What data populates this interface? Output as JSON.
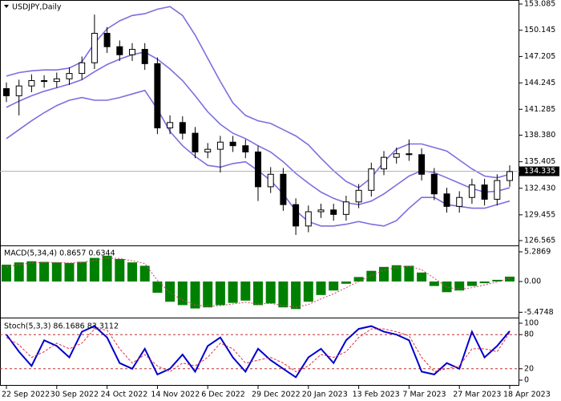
{
  "chart_data": [
    {
      "type": "candlestick",
      "title": "USDJPY,Daily",
      "open": [
        143.6,
        142.8,
        143.9,
        144.5,
        144.4,
        144.7,
        145.3,
        146.5,
        149.8,
        148.3,
        147.4,
        148.0,
        146.4,
        139.2,
        139.8,
        138.6,
        136.5,
        136.8,
        137.6,
        137.2,
        136.5,
        132.6,
        134.0,
        130.6,
        128.2,
        129.8,
        130.0,
        129.5,
        130.9,
        132.2,
        134.6,
        135.9,
        136.3,
        136.2,
        134.0,
        131.8,
        130.4,
        131.4,
        132.8,
        131.2,
        133.3
      ],
      "high": [
        144.3,
        144.6,
        145.2,
        145.1,
        145.4,
        146.0,
        147.2,
        151.9,
        150.5,
        149.0,
        148.7,
        148.7,
        147.1,
        140.6,
        140.5,
        139.3,
        137.5,
        138.3,
        138.3,
        137.9,
        137.2,
        134.8,
        134.7,
        131.3,
        130.5,
        130.7,
        130.7,
        131.6,
        132.9,
        135.3,
        136.6,
        137.0,
        137.9,
        136.9,
        134.7,
        132.5,
        132.1,
        133.5,
        133.5,
        134.0,
        135.0
      ],
      "low": [
        142.1,
        140.6,
        143.2,
        143.7,
        143.7,
        144.0,
        144.6,
        145.8,
        147.6,
        146.7,
        146.7,
        145.7,
        138.5,
        138.5,
        137.9,
        135.8,
        135.8,
        134.2,
        136.5,
        135.8,
        131.0,
        131.9,
        129.9,
        127.2,
        127.5,
        129.1,
        128.8,
        128.8,
        130.2,
        131.5,
        133.9,
        135.2,
        135.5,
        133.3,
        131.1,
        129.7,
        129.7,
        130.7,
        130.5,
        130.5,
        132.6
      ],
      "close": [
        142.8,
        143.9,
        144.5,
        144.4,
        144.7,
        145.3,
        146.5,
        149.8,
        148.3,
        147.4,
        148.0,
        146.4,
        139.2,
        139.8,
        138.6,
        136.5,
        136.8,
        137.6,
        137.2,
        136.5,
        132.6,
        134.0,
        130.6,
        128.2,
        129.8,
        130.0,
        129.5,
        130.9,
        132.2,
        134.6,
        135.9,
        136.3,
        136.2,
        134.0,
        131.8,
        130.4,
        131.4,
        132.8,
        131.2,
        133.3,
        134.3
      ],
      "series": [
        {
          "color": "#7b6fe0",
          "values": [
            145.0,
            145.4,
            145.6,
            145.7,
            145.7,
            145.9,
            146.6,
            148.7,
            150.3,
            151.2,
            151.8,
            152.0,
            152.5,
            152.8,
            151.8,
            149.6,
            147.0,
            144.4,
            142.0,
            140.6,
            140.0,
            139.7,
            139.0,
            138.3,
            137.3,
            135.8,
            134.4,
            133.2,
            132.5,
            133.6,
            135.4,
            136.8,
            137.4,
            137.4,
            137.0,
            136.6,
            135.6,
            134.6,
            133.8,
            133.6,
            134.0
          ]
        },
        {
          "color": "#7b6fe0",
          "values": [
            141.5,
            142.2,
            142.8,
            143.3,
            143.7,
            144.1,
            144.6,
            145.5,
            146.3,
            146.9,
            147.4,
            147.7,
            146.9,
            145.8,
            144.5,
            142.8,
            141.0,
            139.6,
            138.6,
            138.0,
            137.2,
            136.5,
            135.4,
            134.1,
            133.0,
            132.0,
            131.3,
            130.8,
            130.6,
            131.0,
            131.8,
            132.8,
            133.8,
            134.4,
            134.2,
            133.6,
            133.0,
            132.4,
            132.0,
            132.1,
            132.5
          ]
        },
        {
          "color": "#7b6fe0",
          "values": [
            138.0,
            139.0,
            140.0,
            140.9,
            141.7,
            142.3,
            142.6,
            142.3,
            142.3,
            142.6,
            143.0,
            143.4,
            141.3,
            138.8,
            137.2,
            136.0,
            135.0,
            134.8,
            135.2,
            135.4,
            134.4,
            133.3,
            131.8,
            129.9,
            128.7,
            128.2,
            128.2,
            128.4,
            128.7,
            128.4,
            128.2,
            128.8,
            130.2,
            131.4,
            131.4,
            130.6,
            130.4,
            130.2,
            130.2,
            130.6,
            131.0
          ]
        }
      ],
      "last_price": 134.335,
      "ylim": [
        126.115,
        153.445
      ],
      "yticks": [
        153.085,
        150.145,
        147.205,
        144.245,
        141.285,
        {
          "value": 138.38,
          "label": "138.380"
        },
        135.405,
        {
          "value": 132.43,
          "label": "132.430"
        },
        129.455,
        126.565
      ]
    },
    {
      "type": "bar",
      "title": "MACD(5,34,4) 0.8657 0.6344",
      "color": "#008000",
      "values": [
        3.0,
        3.4,
        3.6,
        3.5,
        3.4,
        3.3,
        3.5,
        4.2,
        4.6,
        4.0,
        3.4,
        2.8,
        -2.0,
        -3.6,
        -4.2,
        -4.8,
        -4.6,
        -4.2,
        -3.8,
        -3.4,
        -4.2,
        -3.9,
        -4.6,
        -4.9,
        -3.6,
        -2.4,
        -1.6,
        -0.4,
        0.8,
        1.9,
        2.6,
        2.9,
        2.8,
        1.6,
        -0.8,
        -1.9,
        -1.6,
        -0.8,
        -0.3,
        0.3,
        0.8657
      ],
      "series": [
        {
          "color": "#d04070",
          "values": [
            2.6,
            3.0,
            3.3,
            3.4,
            3.4,
            3.3,
            3.4,
            3.8,
            4.2,
            4.1,
            3.7,
            3.2,
            0.2,
            -2.0,
            -3.3,
            -4.2,
            -4.4,
            -4.3,
            -4.0,
            -3.7,
            -4.0,
            -3.9,
            -4.3,
            -4.6,
            -4.1,
            -3.1,
            -2.2,
            -1.1,
            0.0,
            1.1,
            2.0,
            2.5,
            2.7,
            2.1,
            0.6,
            -1.0,
            -1.4,
            -1.1,
            -0.6,
            -0.1,
            0.6344
          ]
        }
      ],
      "ylim": [
        -6.28,
        6.14
      ],
      "yticks": [
        5.2869,
        {
          "value": 0,
          "label": "0.00"
        },
        -5.4748
      ]
    },
    {
      "type": "line",
      "title": "Stoch(5,3,3) 86.1686 83.3112",
      "categories": [
        "22 Sep 2022",
        null,
        null,
        null,
        "30 Sep 2022",
        null,
        null,
        null,
        "24 Oct 2022",
        null,
        null,
        null,
        "14 Nov 2022",
        null,
        null,
        null,
        "6 Dec 2022",
        null,
        null,
        null,
        "29 Dec 2022",
        null,
        null,
        null,
        "20 Jan 2023",
        null,
        null,
        null,
        "13 Feb 2023",
        null,
        null,
        null,
        "7 Mar 2023",
        null,
        null,
        null,
        "27 Mar 2023",
        null,
        null,
        null,
        "18 Apr 2023"
      ],
      "series": [
        {
          "color": "#0000cd",
          "values": [
            80,
            50,
            25,
            70,
            60,
            40,
            85,
            95,
            75,
            30,
            20,
            55,
            10,
            20,
            45,
            15,
            60,
            75,
            40,
            15,
            55,
            35,
            20,
            5,
            40,
            55,
            30,
            70,
            90,
            95,
            85,
            80,
            70,
            15,
            10,
            30,
            20,
            85,
            40,
            60,
            86.1686
          ]
        },
        {
          "color": "#e03040",
          "values": [
            75,
            62,
            40,
            50,
            65,
            55,
            65,
            90,
            88,
            55,
            30,
            45,
            25,
            15,
            30,
            25,
            40,
            65,
            55,
            30,
            35,
            40,
            30,
            15,
            25,
            45,
            40,
            50,
            75,
            90,
            90,
            85,
            78,
            40,
            15,
            20,
            25,
            55,
            55,
            50,
            83.3112
          ]
        }
      ],
      "levels": [
        80,
        20
      ],
      "ylim": [
        0,
        100
      ],
      "yticks": [
        100,
        80,
        20,
        0
      ]
    }
  ]
}
